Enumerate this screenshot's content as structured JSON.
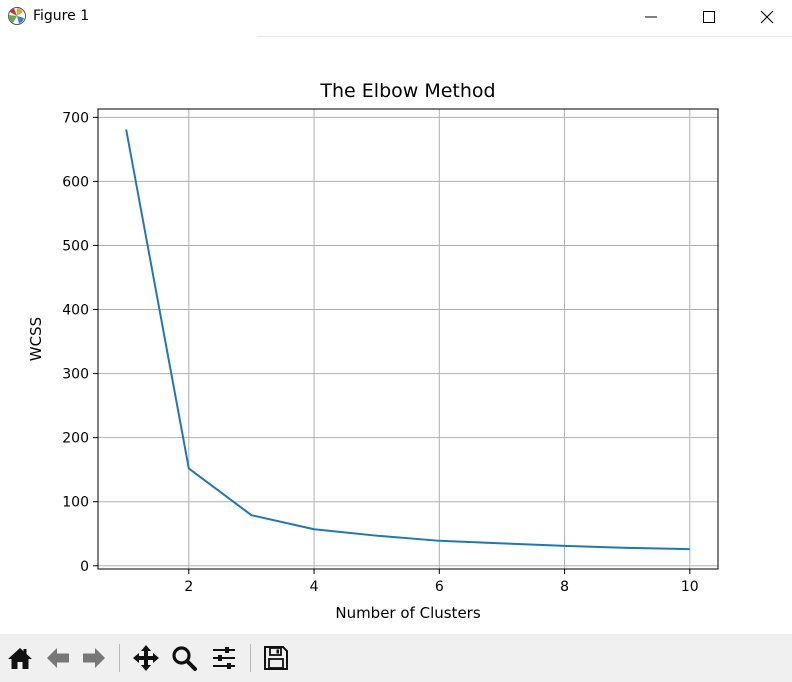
{
  "window": {
    "title": "Figure 1",
    "controls": [
      "minimize-icon",
      "maximize-icon",
      "close-icon"
    ]
  },
  "toolbar": {
    "buttons": [
      "home-icon",
      "back-icon",
      "forward-icon",
      "pan-icon",
      "zoom-icon",
      "configure-subplots-icon",
      "save-icon"
    ]
  },
  "chart_data": {
    "type": "line",
    "title": "The Elbow Method",
    "xlabel": "Number of Clusters",
    "ylabel": "WCSS",
    "x": [
      1,
      2,
      3,
      4,
      5,
      6,
      7,
      8,
      9,
      10
    ],
    "series": [
      {
        "values": [
          681,
          152,
          79,
          57,
          47,
          39,
          35,
          31,
          28,
          26
        ],
        "color": "#1f77b4"
      }
    ],
    "xlim": [
      0.55,
      10.45
    ],
    "ylim": [
      -5,
      713
    ],
    "xticks": [
      2,
      4,
      6,
      8,
      10
    ],
    "xtick_labels": [
      "2",
      "4",
      "6",
      "8",
      "10"
    ],
    "yticks": [
      0,
      100,
      200,
      300,
      400,
      500,
      600,
      700
    ],
    "ytick_labels": [
      "0",
      "100",
      "200",
      "300",
      "400",
      "500",
      "600",
      "700"
    ],
    "grid": true,
    "gridcolor": "#b0b0b0"
  }
}
